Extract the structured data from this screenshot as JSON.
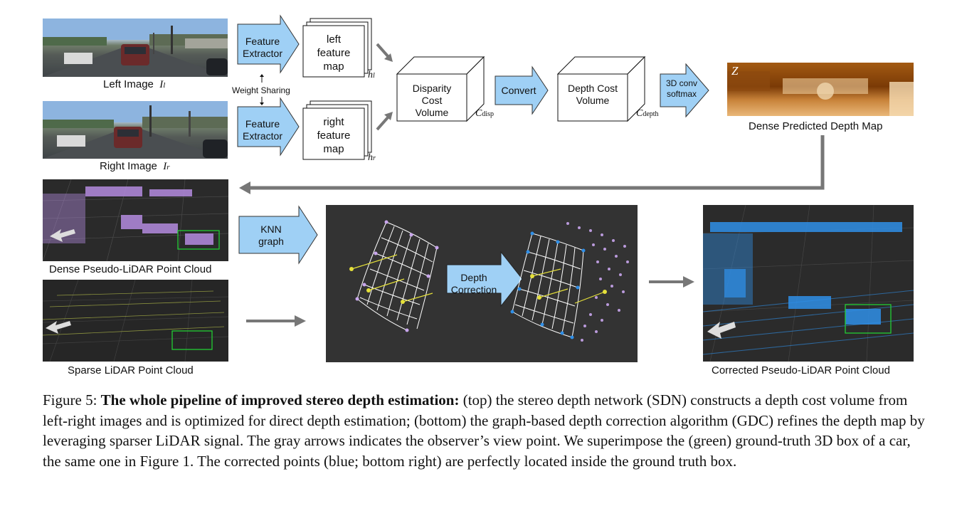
{
  "top": {
    "left_image_label": "Left Image",
    "left_image_symbol": "I",
    "left_image_sub": "l",
    "right_image_label": "Right Image",
    "right_image_symbol": "I",
    "right_image_sub": "r",
    "feature_extractor_label": "Feature Extractor",
    "weight_sharing_label": "Weight Sharing",
    "left_feature_map": "left feature map",
    "right_feature_map": "right feature map",
    "h_left": "h",
    "h_left_sub": "l",
    "h_right": "h",
    "h_right_sub": "r",
    "disparity_volume": "Disparity Cost Volume",
    "c_disp": "C",
    "c_disp_sub": "disp",
    "convert_label": "Convert",
    "depth_volume": "Depth Cost Volume",
    "c_depth": "C",
    "c_depth_sub": "depth",
    "conv_softmax_label": "3D conv softmax",
    "depth_map_symbol": "Z",
    "depth_map_label": "Dense Predicted Depth Map"
  },
  "bottom": {
    "dense_cloud_label": "Dense Pseudo-LiDAR Point Cloud",
    "sparse_cloud_label": "Sparse LiDAR Point Cloud",
    "knn_label": "KNN graph",
    "depth_correction_label": "Depth Correction",
    "corrected_cloud_label": "Corrected Pseudo-LiDAR Point Cloud"
  },
  "caption": {
    "prefix": "Figure 5: ",
    "bold": "The whole pipeline of improved stereo depth estimation:",
    "rest": " (top) the stereo depth network (SDN) constructs a depth cost volume from left-right images and is optimized for direct depth estimation; (bottom) the graph-based depth correction algorithm (GDC) refines the depth map by leveraging sparser LiDAR signal. The gray arrows indicates the observer’s view point. We superimpose the (green) ground-truth 3D box of a car, the same one in Figure 1. The corrected points (blue; bottom right) are perfectly located inside the ground truth box."
  },
  "colors": {
    "arrow_box_fill": "#9fd0f5",
    "gray_arrow": "#7b7b7b",
    "dense_points": "#b48be0",
    "corrected_points": "#2f8fe8",
    "gt_box": "#22cc33",
    "graph_panel": "#333333"
  }
}
